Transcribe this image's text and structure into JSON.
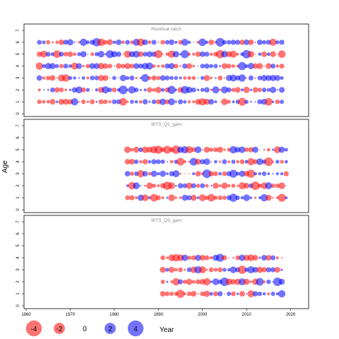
{
  "colors": {
    "positive": "#0000ff",
    "negative": "#ff0000",
    "frame": "#000000",
    "panel_title": "#888888"
  },
  "legend": {
    "entries": [
      {
        "label": "-4",
        "value": -4
      },
      {
        "label": "-2",
        "value": -2
      },
      {
        "label": "0",
        "value": 0
      },
      {
        "label": "2",
        "value": 2
      },
      {
        "label": "4",
        "value": 4
      }
    ],
    "xlabel": "Year"
  },
  "chart_data": {
    "type": "scatter",
    "encoding": "bubble residuals; bubble area proportional to |residual|, blue = positive, red = negative",
    "xlabel": "Year",
    "ylabel": "Age",
    "xlim": [
      1960,
      2022
    ],
    "x_ticks": [
      1960,
      1970,
      1980,
      1990,
      2000,
      2010,
      2020
    ],
    "ylim": [
      0,
      7
    ],
    "y_ticks": [
      0,
      1,
      2,
      3,
      4,
      5,
      6,
      7
    ],
    "panels": [
      {
        "title": "Residual catch",
        "years": [
          1963,
          2018
        ],
        "ages": [
          1,
          2,
          3,
          4,
          5,
          6
        ],
        "seed": 11
      },
      {
        "title": "IBTS_Q1_gam",
        "years": [
          1983,
          2019
        ],
        "ages": [
          1,
          2,
          3,
          4,
          5
        ],
        "seed": 23
      },
      {
        "title": "IBTS_Q3_gam",
        "years": [
          1991,
          2018
        ],
        "ages": [
          1,
          2,
          3,
          4
        ],
        "seed": 37
      }
    ]
  }
}
